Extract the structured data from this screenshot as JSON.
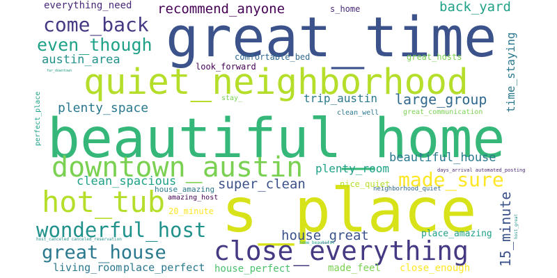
{
  "canvas": {
    "background": "#ffffff"
  },
  "palette": {
    "navy": "#3b528b",
    "indigo": "#443983",
    "purple": "#482878",
    "dark_purple": "#440154",
    "teal": "#21918c",
    "teal_dark": "#2a788e",
    "cyan_teal": "#1fa187",
    "slate": "#31688e",
    "green": "#35b779",
    "green_mid": "#4ac16d",
    "light_green": "#7ad151",
    "lime": "#b5de2b",
    "yellow": "#fde725",
    "yellow_lime": "#d8e219"
  },
  "words": [
    {
      "text": "great_time",
      "color": "#3b528b"
    },
    {
      "text": "quiet_neighborhood",
      "color": "#b5de2b"
    },
    {
      "text": "beautiful_home",
      "color": "#35b779"
    },
    {
      "text": "s_place",
      "color": "#d8e219"
    },
    {
      "text": "downtown_austin",
      "color": "#7ad151"
    },
    {
      "text": "close_everything",
      "color": "#443983"
    },
    {
      "text": "hot_tub",
      "color": "#b5de2b"
    },
    {
      "text": "wonderful_host",
      "color": "#21918c"
    },
    {
      "text": "great_house",
      "color": "#2a788e"
    },
    {
      "text": "made_sure",
      "color": "#fde725"
    },
    {
      "text": "come_back",
      "color": "#443983"
    },
    {
      "text": "even_though",
      "color": "#1fa187"
    },
    {
      "text": "recommend_anyone",
      "color": "#440154"
    },
    {
      "text": "everything_need",
      "color": "#482878"
    },
    {
      "text": "s_home",
      "color": "#482878"
    },
    {
      "text": "back_yard",
      "color": "#1fa187"
    },
    {
      "text": "austin_area",
      "color": "#21918c"
    },
    {
      "text": "comfortable_bed",
      "color": "#31688e"
    },
    {
      "text": "great_hosts",
      "color": "#7ad151"
    },
    {
      "text": "look_forward",
      "color": "#440154"
    },
    {
      "text": "time_staying",
      "color": "#2a788e"
    },
    {
      "text": "trip_austin",
      "color": "#2a788e"
    },
    {
      "text": "large_group",
      "color": "#31688e"
    },
    {
      "text": "stay_",
      "color": "#7ad151"
    },
    {
      "text": "plenty_space",
      "color": "#2a788e"
    },
    {
      "text": "clean_well",
      "color": "#2a788e"
    },
    {
      "text": "great_communication",
      "color": "#7ad151"
    },
    {
      "text": "perfect_place",
      "color": "#1fa187"
    },
    {
      "text": "far_downtown",
      "color": "#1fa187"
    },
    {
      "text": "beautiful_house",
      "color": "#2a788e"
    },
    {
      "text": "plenty_room",
      "color": "#1fa187"
    },
    {
      "text": "clean_spacious",
      "color": "#1fa187"
    },
    {
      "text": "super_clean",
      "color": "#3b528b"
    },
    {
      "text": "nice_quiet",
      "color": "#b5de2b"
    },
    {
      "text": "days_arrival automated_posting",
      "color": "#482878"
    },
    {
      "text": "neighborhood_quiet",
      "color": "#31688e"
    },
    {
      "text": "house_amazing",
      "color": "#2a788e"
    },
    {
      "text": "amazing_host",
      "color": "#440154"
    },
    {
      "text": "20_minute",
      "color": "#fde725"
    },
    {
      "text": "house_great",
      "color": "#3b528b"
    },
    {
      "text": "place_amazing",
      "color": "#1fa187"
    },
    {
      "text": "15_minute",
      "color": "#3b528b"
    },
    {
      "text": "host_great",
      "color": "#21918c"
    },
    {
      "text": "host_canceled canceled_reservation",
      "color": "#21918c"
    },
    {
      "text": "home_beautiful",
      "color": "#1fa187"
    },
    {
      "text": "living_room",
      "color": "#2a788e"
    },
    {
      "text": "place_perfect",
      "color": "#2a788e"
    },
    {
      "text": "house_perfect",
      "color": "#4ac16d"
    },
    {
      "text": "made_feel",
      "color": "#7ad151"
    },
    {
      "text": "close_enough",
      "color": "#fde725"
    }
  ]
}
